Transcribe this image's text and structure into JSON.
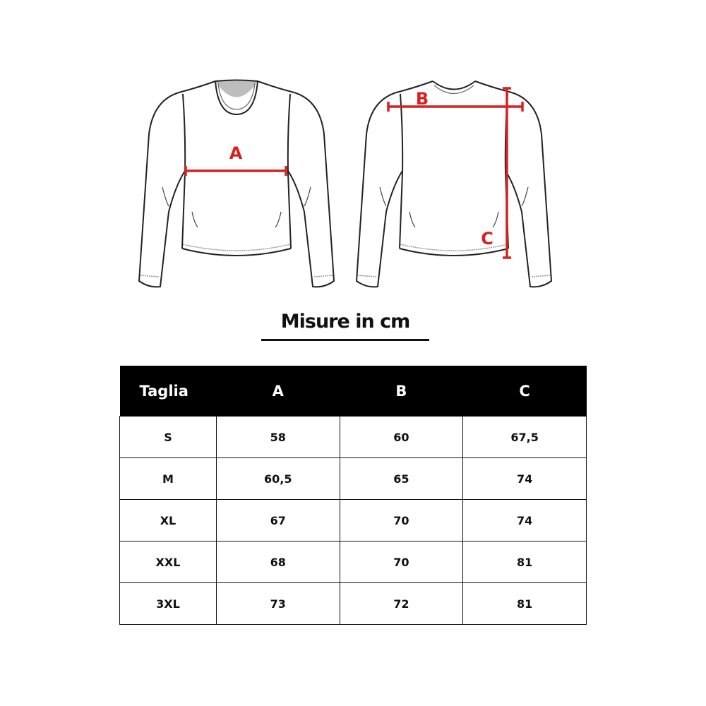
{
  "diagram": {
    "labels": {
      "a": "A",
      "b": "B",
      "c": "C"
    },
    "colors": {
      "measure": "#d42222",
      "outline": "#222222",
      "collar_inner": "#bdbdbd"
    }
  },
  "title": "Misure in cm",
  "table": {
    "headers": [
      "Taglia",
      "A",
      "B",
      "C"
    ],
    "rows": [
      [
        "S",
        "58",
        "60",
        "67,5"
      ],
      [
        "M",
        "60,5",
        "65",
        "74"
      ],
      [
        "XL",
        "67",
        "70",
        "74"
      ],
      [
        "XXL",
        "68",
        "70",
        "81"
      ],
      [
        "3XL",
        "73",
        "72",
        "81"
      ]
    ]
  }
}
